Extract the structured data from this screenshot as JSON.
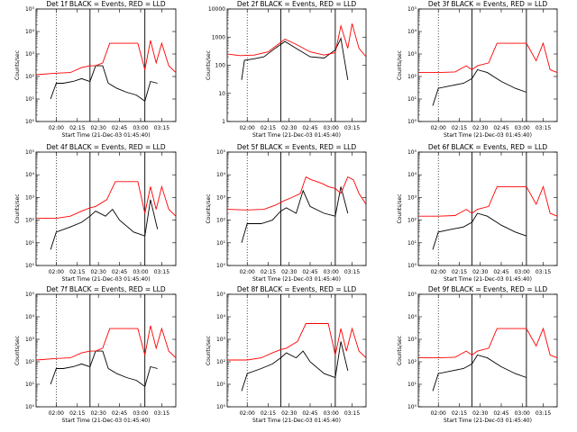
{
  "chart_data": [
    {
      "type": "line",
      "title": "Det 1f BLACK = Events, RED = LLD",
      "ylabel": "Counts/sec",
      "xlabel": "Start Time (21-Dec-03 01:45:40)",
      "y_scale": "log",
      "ylim": [
        1,
        100000
      ],
      "y_ticks": [
        "10⁰",
        "10¹",
        "10²",
        "10³",
        "10⁴",
        "10⁵"
      ],
      "x_ticks": [
        "02:00",
        "02:15",
        "02:30",
        "02:45",
        "03:00",
        "03:15"
      ],
      "xlim": [
        "01:45:40",
        "03:25"
      ],
      "vlines_dotted": [
        "02:00"
      ],
      "vlines_solid": [
        "02:24",
        "03:03"
      ],
      "series": [
        {
          "color": "#000000",
          "x": [
            "01:56",
            "02:00",
            "02:05",
            "02:12",
            "02:18",
            "02:24",
            "02:28",
            "02:33",
            "02:37",
            "02:43",
            "02:50",
            "02:57",
            "03:03",
            "03:07",
            "03:12"
          ],
          "values": [
            10,
            50,
            50,
            60,
            80,
            60,
            300,
            300,
            50,
            30,
            20,
            15,
            8,
            60,
            50
          ]
        },
        {
          "color": "#ff0000",
          "x": [
            "01:46",
            "02:00",
            "02:10",
            "02:18",
            "02:24",
            "02:28",
            "02:33",
            "02:38",
            "02:42",
            "02:46",
            "02:50",
            "02:54",
            "02:58",
            "03:03",
            "03:07",
            "03:11",
            "03:15",
            "03:20",
            "03:25"
          ],
          "values": [
            120,
            140,
            150,
            250,
            300,
            300,
            400,
            3000,
            3000,
            3000,
            3000,
            3000,
            3000,
            200,
            4000,
            400,
            3000,
            300,
            150
          ]
        }
      ]
    },
    {
      "type": "line",
      "title": "Det 2f BLACK = Events, RED = LLD",
      "ylabel": "Counts/sec",
      "xlabel": "Start Time (21-Dec-03 01:45:40)",
      "y_scale": "log",
      "ylim": [
        1,
        10000
      ],
      "y_ticks": [
        "1",
        "10",
        "100",
        "1000",
        "10000"
      ],
      "x_ticks": [
        "02:00",
        "02:15",
        "02:30",
        "02:45",
        "03:00",
        "03:15"
      ],
      "xlim": [
        "01:45:40",
        "03:25"
      ],
      "vlines_dotted": [
        "02:00"
      ],
      "vlines_solid": [
        "02:24",
        "03:03"
      ],
      "series": [
        {
          "color": "#000000",
          "x": [
            "01:56",
            "01:58",
            "02:05",
            "02:12",
            "02:20",
            "02:27",
            "02:35",
            "02:45",
            "02:55",
            "03:03",
            "03:07",
            "03:12"
          ],
          "values": [
            30,
            150,
            170,
            200,
            400,
            700,
            400,
            200,
            180,
            350,
            900,
            30
          ]
        },
        {
          "color": "#ff0000",
          "x": [
            "01:46",
            "01:55",
            "02:05",
            "02:15",
            "02:22",
            "02:27",
            "02:35",
            "02:45",
            "02:55",
            "03:03",
            "03:07",
            "03:12",
            "03:15",
            "03:20",
            "03:25"
          ],
          "values": [
            250,
            220,
            230,
            300,
            550,
            850,
            550,
            300,
            230,
            280,
            2500,
            400,
            3000,
            400,
            200
          ]
        }
      ]
    },
    {
      "type": "line",
      "title": "Det 3f BLACK = Events, RED = LLD",
      "ylabel": "Counts/sec",
      "xlabel": "Start Time (21-Dec-03 01:45:40)",
      "y_scale": "log",
      "ylim": [
        1,
        100000
      ],
      "y_ticks": [
        "10⁰",
        "10¹",
        "10²",
        "10³",
        "10⁴",
        "10⁵"
      ],
      "x_ticks": [
        "02:00",
        "02:15",
        "02:30",
        "02:45",
        "03:00",
        "03:15"
      ],
      "xlim": [
        "01:45:40",
        "03:25"
      ],
      "vlines_dotted": [
        "02:00"
      ],
      "vlines_solid": [
        "02:24",
        "03:03"
      ],
      "series": [
        {
          "color": "#000000",
          "x": [
            "01:56",
            "02:00",
            "02:10",
            "02:18",
            "02:24",
            "02:28",
            "02:35",
            "02:45",
            "02:55",
            "03:03"
          ],
          "values": [
            5,
            30,
            40,
            50,
            80,
            200,
            150,
            60,
            30,
            20
          ]
        },
        {
          "color": "#ff0000",
          "x": [
            "01:46",
            "02:00",
            "02:12",
            "02:20",
            "02:24",
            "02:28",
            "02:36",
            "02:42",
            "02:46",
            "02:50",
            "02:54",
            "02:58",
            "03:03",
            "03:10",
            "03:15",
            "03:20",
            "03:25"
          ],
          "values": [
            150,
            150,
            160,
            300,
            200,
            300,
            400,
            3000,
            3000,
            3000,
            3000,
            3000,
            3000,
            500,
            3000,
            200,
            150
          ]
        }
      ]
    },
    {
      "type": "line",
      "title": "Det 4f BLACK = Events, RED = LLD",
      "ylabel": "Counts/sec",
      "xlabel": "Start Time (21-Dec-03 01:45:40)",
      "y_scale": "log",
      "ylim": [
        1,
        100000
      ],
      "y_ticks": [
        "10⁰",
        "10¹",
        "10²",
        "10³",
        "10⁴",
        "10⁵"
      ],
      "x_ticks": [
        "02:00",
        "02:15",
        "02:30",
        "02:45",
        "03:00",
        "03:15"
      ],
      "xlim": [
        "01:45:40",
        "03:25"
      ],
      "vlines_dotted": [
        "02:00"
      ],
      "vlines_solid": [
        "02:24",
        "03:03"
      ],
      "series": [
        {
          "color": "#000000",
          "x": [
            "01:56",
            "02:00",
            "02:10",
            "02:18",
            "02:24",
            "02:28",
            "02:35",
            "02:40",
            "02:45",
            "02:55",
            "03:03",
            "03:07",
            "03:12"
          ],
          "values": [
            5,
            30,
            50,
            80,
            150,
            250,
            150,
            300,
            100,
            30,
            20,
            800,
            40
          ]
        },
        {
          "color": "#ff0000",
          "x": [
            "01:46",
            "02:00",
            "02:10",
            "02:18",
            "02:24",
            "02:28",
            "02:36",
            "02:42",
            "02:46",
            "02:50",
            "02:54",
            "02:58",
            "03:03",
            "03:07",
            "03:11",
            "03:15",
            "03:20",
            "03:25"
          ],
          "values": [
            120,
            120,
            150,
            250,
            350,
            400,
            800,
            5000,
            5000,
            5000,
            5000,
            5000,
            200,
            3000,
            300,
            3000,
            300,
            150
          ]
        }
      ]
    },
    {
      "type": "line",
      "title": "Det 5f BLACK = Events, RED = LLD",
      "ylabel": "Counts/sec",
      "xlabel": "Start Time (21-Dec-03 01:45:40)",
      "y_scale": "log",
      "ylim": [
        1,
        100000
      ],
      "y_ticks": [
        "10⁰",
        "10¹",
        "10²",
        "10³",
        "10⁴",
        "10⁵"
      ],
      "x_ticks": [
        "02:00",
        "02:15",
        "02:30",
        "02:45",
        "03:00",
        "03:15"
      ],
      "xlim": [
        "01:45:40",
        "03:25"
      ],
      "vlines_dotted": [
        "02:00"
      ],
      "vlines_solid": [
        "02:24",
        "03:03"
      ],
      "series": [
        {
          "color": "#000000",
          "x": [
            "01:56",
            "02:00",
            "02:10",
            "02:18",
            "02:24",
            "02:28",
            "02:35",
            "02:40",
            "02:45",
            "02:55",
            "03:03",
            "03:07",
            "03:12"
          ],
          "values": [
            10,
            70,
            70,
            100,
            250,
            350,
            200,
            2000,
            400,
            200,
            150,
            3000,
            200
          ]
        },
        {
          "color": "#ff0000",
          "x": [
            "01:46",
            "02:00",
            "02:12",
            "02:20",
            "02:26",
            "02:32",
            "02:38",
            "02:42",
            "02:46",
            "02:50",
            "02:54",
            "02:58",
            "03:03",
            "03:07",
            "03:12",
            "03:16",
            "03:20",
            "03:25"
          ],
          "values": [
            300,
            280,
            300,
            450,
            700,
            1000,
            1500,
            8000,
            6000,
            5000,
            4000,
            3000,
            2500,
            1500,
            8000,
            6000,
            1500,
            500
          ]
        }
      ]
    },
    {
      "type": "line",
      "title": "Det 6f BLACK = Events, RED = LLD",
      "ylabel": "Counts/sec",
      "xlabel": "Start Time (21-Dec-03 01:45:40)",
      "y_scale": "log",
      "ylim": [
        1,
        100000
      ],
      "y_ticks": [
        "10⁰",
        "10¹",
        "10²",
        "10³",
        "10⁴",
        "10⁵"
      ],
      "x_ticks": [
        "02:00",
        "02:15",
        "02:30",
        "02:45",
        "03:00",
        "03:15"
      ],
      "xlim": [
        "01:45:40",
        "03:25"
      ],
      "vlines_dotted": [
        "02:00"
      ],
      "vlines_solid": [
        "02:24",
        "03:03"
      ],
      "series": [
        {
          "color": "#000000",
          "x": [
            "01:56",
            "02:00",
            "02:10",
            "02:18",
            "02:24",
            "02:28",
            "02:35",
            "02:45",
            "02:55",
            "03:03"
          ],
          "values": [
            5,
            30,
            40,
            50,
            80,
            200,
            150,
            60,
            30,
            20
          ]
        },
        {
          "color": "#ff0000",
          "x": [
            "01:46",
            "02:00",
            "02:12",
            "02:20",
            "02:24",
            "02:28",
            "02:36",
            "02:42",
            "02:46",
            "02:50",
            "02:54",
            "02:58",
            "03:03",
            "03:10",
            "03:15",
            "03:20",
            "03:25"
          ],
          "values": [
            150,
            150,
            160,
            300,
            200,
            300,
            400,
            3000,
            3000,
            3000,
            3000,
            3000,
            3000,
            500,
            3000,
            200,
            150
          ]
        }
      ]
    },
    {
      "type": "line",
      "title": "Det 7f BLACK = Events, RED = LLD",
      "ylabel": "Counts/sec",
      "xlabel": "Start Time (21-Dec-03 01:45:40)",
      "y_scale": "log",
      "ylim": [
        1,
        100000
      ],
      "y_ticks": [
        "10⁰",
        "10¹",
        "10²",
        "10³",
        "10⁴",
        "10⁵"
      ],
      "x_ticks": [
        "02:00",
        "02:15",
        "02:30",
        "02:45",
        "03:00",
        "03:15"
      ],
      "xlim": [
        "01:45:40",
        "03:25"
      ],
      "vlines_dotted": [
        "02:00"
      ],
      "vlines_solid": [
        "02:24",
        "03:03"
      ],
      "series": [
        {
          "color": "#000000",
          "x": [
            "01:56",
            "02:00",
            "02:05",
            "02:12",
            "02:18",
            "02:24",
            "02:28",
            "02:33",
            "02:37",
            "02:43",
            "02:50",
            "02:57",
            "03:03",
            "03:07",
            "03:12"
          ],
          "values": [
            10,
            50,
            50,
            60,
            80,
            60,
            300,
            300,
            50,
            30,
            20,
            15,
            8,
            60,
            50
          ]
        },
        {
          "color": "#ff0000",
          "x": [
            "01:46",
            "02:00",
            "02:10",
            "02:18",
            "02:24",
            "02:28",
            "02:33",
            "02:38",
            "02:42",
            "02:46",
            "02:50",
            "02:54",
            "02:58",
            "03:03",
            "03:07",
            "03:11",
            "03:15",
            "03:20",
            "03:25"
          ],
          "values": [
            120,
            140,
            150,
            250,
            300,
            300,
            400,
            3000,
            3000,
            3000,
            3000,
            3000,
            3000,
            200,
            4000,
            400,
            3000,
            300,
            150
          ]
        }
      ]
    },
    {
      "type": "line",
      "title": "Det 8f BLACK = Events, RED = LLD",
      "ylabel": "Counts/sec",
      "xlabel": "Start Time (21-Dec-03 01:45:40)",
      "y_scale": "log",
      "ylim": [
        1,
        100000
      ],
      "y_ticks": [
        "10⁰",
        "10¹",
        "10²",
        "10³",
        "10⁴",
        "10⁵"
      ],
      "x_ticks": [
        "02:00",
        "02:15",
        "02:30",
        "02:45",
        "03:00",
        "03:15"
      ],
      "xlim": [
        "01:45:40",
        "03:25"
      ],
      "vlines_dotted": [
        "02:00"
      ],
      "vlines_solid": [
        "02:24",
        "03:03"
      ],
      "series": [
        {
          "color": "#000000",
          "x": [
            "01:56",
            "02:00",
            "02:10",
            "02:18",
            "02:24",
            "02:28",
            "02:35",
            "02:40",
            "02:45",
            "02:55",
            "03:03",
            "03:07",
            "03:12"
          ],
          "values": [
            5,
            30,
            50,
            80,
            150,
            250,
            150,
            300,
            100,
            30,
            20,
            800,
            40
          ]
        },
        {
          "color": "#ff0000",
          "x": [
            "01:46",
            "02:00",
            "02:10",
            "02:18",
            "02:24",
            "02:28",
            "02:36",
            "02:42",
            "02:46",
            "02:50",
            "02:54",
            "02:58",
            "03:03",
            "03:07",
            "03:11",
            "03:15",
            "03:20",
            "03:25"
          ],
          "values": [
            120,
            120,
            150,
            250,
            350,
            400,
            800,
            5000,
            5000,
            5000,
            5000,
            5000,
            200,
            3000,
            300,
            3000,
            300,
            150
          ]
        }
      ]
    },
    {
      "type": "line",
      "title": "Det 9f BLACK = Events, RED = LLD",
      "ylabel": "Counts/sec",
      "xlabel": "Start Time (21-Dec-03 01:45:40)",
      "y_scale": "log",
      "ylim": [
        1,
        100000
      ],
      "y_ticks": [
        "10⁰",
        "10¹",
        "10²",
        "10³",
        "10⁴",
        "10⁵"
      ],
      "x_ticks": [
        "02:00",
        "02:15",
        "02:30",
        "02:45",
        "03:00",
        "03:15"
      ],
      "xlim": [
        "01:45:40",
        "03:25"
      ],
      "vlines_dotted": [
        "02:00"
      ],
      "vlines_solid": [
        "02:24",
        "03:03"
      ],
      "series": [
        {
          "color": "#000000",
          "x": [
            "01:56",
            "02:00",
            "02:10",
            "02:18",
            "02:24",
            "02:28",
            "02:35",
            "02:45",
            "02:55",
            "03:03"
          ],
          "values": [
            5,
            30,
            40,
            50,
            80,
            200,
            150,
            60,
            30,
            20
          ]
        },
        {
          "color": "#ff0000",
          "x": [
            "01:46",
            "02:00",
            "02:12",
            "02:20",
            "02:24",
            "02:28",
            "02:36",
            "02:42",
            "02:46",
            "02:50",
            "02:54",
            "02:58",
            "03:03",
            "03:10",
            "03:15",
            "03:20",
            "03:25"
          ],
          "values": [
            150,
            150,
            160,
            300,
            200,
            300,
            400,
            3000,
            3000,
            3000,
            3000,
            3000,
            3000,
            500,
            3000,
            200,
            150
          ]
        }
      ]
    }
  ]
}
